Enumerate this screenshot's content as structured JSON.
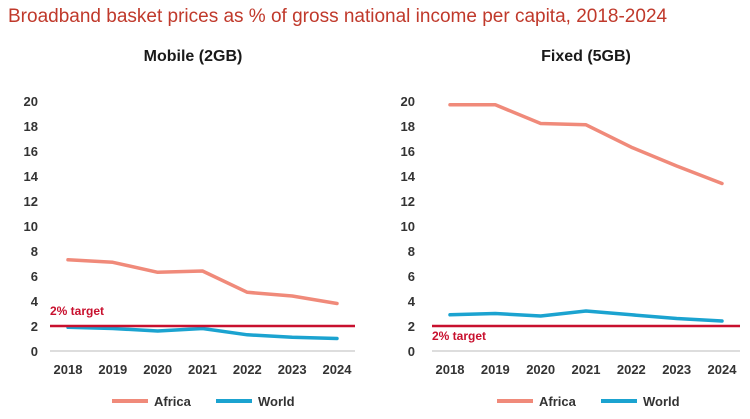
{
  "title": "Broadband basket prices as % of gross national income per capita, 2018-2024",
  "colors": {
    "africa": "#f08a7a",
    "world": "#1ba3d0",
    "target": "#c8102e",
    "title": "#c0392b",
    "axis": "#bbbbbb"
  },
  "chart_data": [
    {
      "type": "line",
      "title": "Mobile (2GB)",
      "x": [
        "2018",
        "2019",
        "2020",
        "2021",
        "2022",
        "2023",
        "2024"
      ],
      "yticks": [
        "0",
        "2",
        "4",
        "6",
        "8",
        "10",
        "12",
        "14",
        "16",
        "18",
        "20"
      ],
      "ylim": [
        0,
        20
      ],
      "series": [
        {
          "name": "Africa",
          "values": [
            7.3,
            7.1,
            6.3,
            6.4,
            4.7,
            4.4,
            3.8
          ]
        },
        {
          "name": "World",
          "values": [
            1.9,
            1.8,
            1.6,
            1.8,
            1.3,
            1.1,
            1.0
          ]
        }
      ],
      "target": {
        "value": 2,
        "label": "2% target",
        "label_position": "above"
      },
      "legend": {
        "position": "bottom"
      }
    },
    {
      "type": "line",
      "title": "Fixed (5GB)",
      "x": [
        "2018",
        "2019",
        "2020",
        "2021",
        "2022",
        "2023",
        "2024"
      ],
      "yticks": [
        "0",
        "2",
        "4",
        "6",
        "8",
        "10",
        "12",
        "14",
        "16",
        "18",
        "20"
      ],
      "ylim": [
        0,
        20
      ],
      "series": [
        {
          "name": "Africa",
          "values": [
            19.7,
            19.7,
            18.2,
            18.1,
            16.3,
            14.8,
            13.4
          ]
        },
        {
          "name": "World",
          "values": [
            2.9,
            3.0,
            2.8,
            3.2,
            2.9,
            2.6,
            2.4
          ]
        }
      ],
      "target": {
        "value": 2,
        "label": "2% target",
        "label_position": "below"
      },
      "legend": {
        "position": "bottom"
      }
    }
  ]
}
